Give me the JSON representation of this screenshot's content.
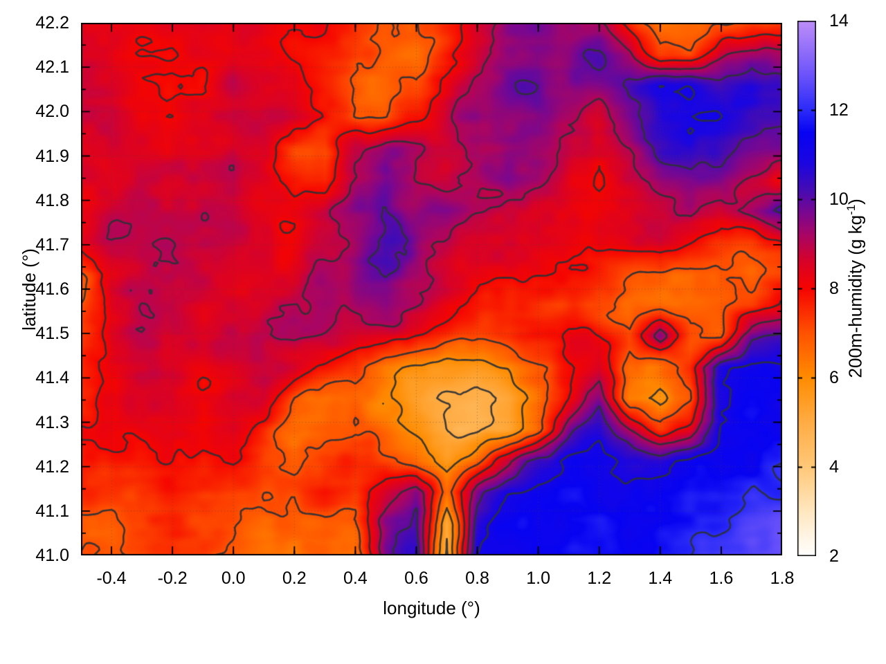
{
  "figure": {
    "background": "#ffffff"
  },
  "chart_data": {
    "type": "heatmap",
    "title": "",
    "xlabel": "longitude (°)",
    "ylabel": "latitude (°)",
    "colorbar_label": {
      "prefix": "200m-humidity (g kg",
      "sup": "-1",
      "suffix": ")"
    },
    "xlim": [
      -0.5,
      1.8
    ],
    "ylim": [
      41.0,
      42.2
    ],
    "clim": [
      2,
      14
    ],
    "x_ticks": {
      "values": [
        -0.4,
        -0.2,
        0.0,
        0.2,
        0.4,
        0.6,
        0.8,
        1.0,
        1.2,
        1.4,
        1.6,
        1.8
      ],
      "labels": [
        "-0.4",
        "-0.2",
        "0.0",
        "0.2",
        "0.4",
        "0.6",
        "0.8",
        "1.0",
        "1.2",
        "1.4",
        "1.6",
        "1.8"
      ]
    },
    "y_ticks": {
      "values": [
        41.0,
        41.1,
        41.2,
        41.3,
        41.4,
        41.5,
        41.6,
        41.7,
        41.8,
        41.9,
        42.0,
        42.1,
        42.2
      ],
      "labels": [
        "41.0",
        "41.1",
        "41.2",
        "41.3",
        "41.4",
        "41.5",
        "41.6",
        "41.7",
        "41.8",
        "41.9",
        "42.0",
        "42.1",
        "42.2"
      ]
    },
    "colorbar_ticks": {
      "values": [
        2,
        4,
        6,
        8,
        10,
        12,
        14
      ],
      "labels": [
        "2",
        "4",
        "6",
        "8",
        "10",
        "12",
        "14"
      ]
    },
    "minor_tick_step": {
      "x": 0.1,
      "y": 0.05
    },
    "grid_lines": true,
    "contour_levels": [
      5,
      6,
      7,
      8,
      9,
      10,
      11,
      12
    ],
    "contour_color": "rgba(44,49,54,0.92)",
    "palette_stops": [
      [
        2.0,
        "#ffffff"
      ],
      [
        3.0,
        "#ffe7c0"
      ],
      [
        4.0,
        "#ffc878"
      ],
      [
        5.0,
        "#ffac44"
      ],
      [
        6.0,
        "#ff8c00"
      ],
      [
        7.0,
        "#ff5200"
      ],
      [
        8.0,
        "#f60400"
      ],
      [
        8.6,
        "#d80228"
      ],
      [
        9.2,
        "#a80565"
      ],
      [
        9.7,
        "#7a0790"
      ],
      [
        10.2,
        "#460cb2"
      ],
      [
        10.8,
        "#1c06e0"
      ],
      [
        11.5,
        "#0703f2"
      ],
      [
        12.0,
        "#2b2bf8"
      ],
      [
        12.8,
        "#6d54fa"
      ],
      [
        14.0,
        "#bd8ef8"
      ]
    ],
    "grid": {
      "lon_range": [
        -0.5,
        1.8
      ],
      "lat_range_top_to_bottom": [
        42.2,
        41.0
      ],
      "values": [
        [
          8.4,
          8.4,
          8.3,
          8.3,
          8.4,
          8.5,
          8.3,
          8.0,
          7.8,
          7.6,
          7.2,
          6.8,
          7.4,
          8.6,
          9.4,
          9.7,
          9.3,
          9.0,
          7.6,
          6.5,
          6.6,
          7.0,
          7.2,
          7.6
        ],
        [
          8.5,
          8.4,
          8.3,
          8.2,
          8.3,
          8.6,
          8.4,
          8.1,
          7.6,
          7.2,
          6.9,
          6.7,
          7.8,
          8.8,
          9.6,
          9.9,
          9.5,
          10.2,
          9.4,
          7.0,
          7.2,
          8.6,
          9.6,
          9.2
        ],
        [
          8.6,
          8.5,
          8.2,
          8.0,
          8.2,
          8.7,
          8.5,
          8.2,
          7.4,
          6.8,
          6.6,
          7.0,
          8.4,
          9.2,
          9.8,
          10.0,
          9.4,
          9.6,
          10.4,
          11.0,
          10.8,
          10.6,
          11.0,
          10.4
        ],
        [
          8.7,
          8.6,
          8.3,
          8.1,
          8.4,
          8.8,
          8.8,
          8.6,
          7.8,
          7.0,
          6.9,
          7.8,
          8.8,
          9.4,
          9.6,
          9.8,
          9.2,
          8.6,
          9.8,
          10.8,
          11.2,
          11.0,
          10.6,
          10.2
        ],
        [
          8.5,
          8.5,
          8.4,
          8.3,
          8.5,
          8.8,
          8.6,
          7.2,
          7.0,
          8.8,
          9.7,
          9.2,
          8.8,
          9.2,
          9.4,
          9.6,
          9.0,
          8.4,
          8.8,
          10.2,
          10.8,
          10.4,
          10.0,
          9.6
        ],
        [
          8.4,
          8.6,
          8.6,
          8.5,
          8.7,
          8.9,
          8.4,
          7.6,
          7.4,
          9.0,
          9.9,
          9.0,
          8.6,
          8.8,
          9.6,
          9.4,
          8.6,
          8.2,
          8.8,
          9.4,
          9.8,
          9.4,
          8.6,
          8.4
        ],
        [
          8.3,
          8.7,
          8.9,
          8.8,
          8.9,
          8.8,
          8.5,
          8.2,
          8.6,
          9.4,
          10.0,
          9.4,
          9.6,
          9.2,
          8.8,
          8.6,
          8.4,
          8.2,
          8.6,
          9.0,
          9.4,
          8.6,
          9.4,
          10.4
        ],
        [
          8.2,
          8.8,
          9.0,
          8.9,
          8.8,
          8.6,
          8.4,
          8.3,
          8.8,
          9.2,
          10.2,
          9.6,
          9.0,
          8.8,
          8.6,
          8.4,
          8.2,
          8.0,
          8.4,
          8.8,
          8.2,
          7.6,
          7.4,
          7.9
        ],
        [
          6.9,
          8.2,
          8.9,
          9.0,
          8.7,
          8.5,
          8.6,
          8.5,
          9.0,
          9.6,
          10.0,
          9.2,
          8.6,
          8.4,
          8.2,
          8.0,
          7.8,
          7.6,
          7.4,
          7.0,
          6.6,
          7.0,
          6.9,
          7.2
        ],
        [
          7.2,
          8.4,
          8.8,
          8.9,
          8.6,
          8.6,
          8.8,
          8.8,
          9.2,
          9.4,
          9.6,
          8.8,
          8.2,
          7.8,
          7.6,
          7.4,
          7.2,
          7.0,
          6.8,
          6.6,
          6.4,
          6.8,
          7.4,
          8.0
        ],
        [
          7.6,
          8.6,
          8.8,
          8.8,
          8.5,
          8.7,
          9.0,
          9.2,
          9.0,
          8.8,
          8.6,
          8.0,
          7.6,
          7.2,
          7.4,
          7.8,
          8.2,
          8.0,
          7.2,
          9.8,
          7.2,
          6.8,
          9.8,
          10.4
        ],
        [
          7.8,
          8.4,
          8.6,
          8.5,
          8.3,
          8.6,
          8.8,
          8.4,
          8.0,
          7.4,
          6.4,
          5.9,
          5.7,
          5.6,
          6.0,
          7.0,
          7.8,
          8.4,
          6.8,
          6.2,
          7.4,
          10.6,
          11.2,
          11.0
        ],
        [
          7.9,
          8.2,
          8.4,
          8.3,
          8.0,
          8.4,
          8.6,
          7.0,
          6.6,
          6.9,
          6.2,
          5.4,
          5.0,
          4.9,
          5.3,
          6.4,
          8.0,
          9.6,
          6.4,
          5.9,
          7.0,
          10.9,
          11.3,
          11.2
        ],
        [
          7.8,
          8.0,
          8.2,
          8.1,
          7.9,
          8.2,
          7.4,
          6.6,
          7.0,
          7.2,
          6.6,
          5.8,
          4.8,
          4.7,
          5.2,
          6.8,
          9.4,
          10.8,
          9.0,
          7.5,
          8.5,
          11.0,
          11.4,
          11.3
        ],
        [
          7.6,
          7.8,
          8.0,
          7.9,
          7.8,
          8.0,
          7.0,
          6.8,
          7.4,
          7.6,
          7.2,
          6.6,
          5.6,
          6.8,
          8.8,
          10.6,
          11.2,
          11.3,
          11.0,
          10.8,
          11.2,
          11.4,
          11.6,
          11.8
        ],
        [
          7.4,
          7.2,
          7.6,
          7.7,
          7.6,
          7.4,
          6.9,
          7.0,
          7.6,
          7.4,
          8.8,
          9.6,
          6.6,
          9.6,
          10.8,
          11.2,
          11.4,
          11.4,
          11.2,
          11.4,
          11.6,
          11.7,
          11.9,
          12.1
        ],
        [
          7.0,
          6.9,
          7.2,
          7.5,
          7.4,
          7.2,
          6.8,
          6.6,
          7.0,
          6.9,
          9.4,
          10.2,
          5.2,
          10.4,
          11.3,
          11.5,
          11.6,
          11.6,
          11.5,
          11.7,
          11.9,
          12.1,
          12.3,
          12.4
        ],
        [
          6.8,
          6.7,
          7.0,
          7.4,
          7.3,
          7.0,
          6.6,
          6.4,
          6.8,
          6.6,
          9.8,
          10.4,
          4.9,
          11.0,
          11.5,
          11.6,
          11.7,
          11.7,
          11.6,
          11.8,
          12.0,
          12.4,
          12.6,
          12.7
        ]
      ]
    }
  }
}
